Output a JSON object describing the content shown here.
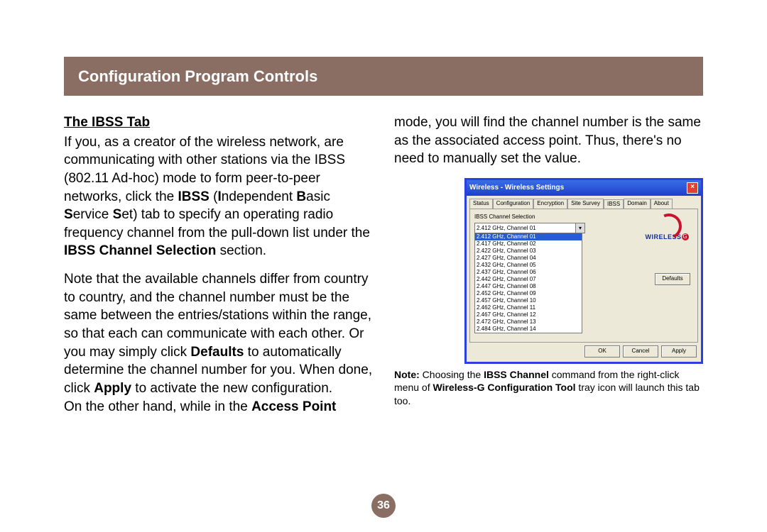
{
  "header": {
    "title": "Configuration Program Controls"
  },
  "page_number": "36",
  "left_column": {
    "subheading": "The IBSS Tab",
    "para1_pre": "If you, as a creator of the wireless network, are communicating with other stations via the IBSS (802.11 Ad-hoc) mode to form peer-to-peer networks, click the ",
    "para1_bold1": "IBSS",
    "para1_mid1": " (",
    "para1_bold2": "I",
    "para1_mid2": "ndependent ",
    "para1_bold3": "B",
    "para1_mid3": "asic ",
    "para1_bold4": "S",
    "para1_mid4": "ervice ",
    "para1_bold5": "S",
    "para1_mid5": "et) tab to specify an operating radio frequency channel from the pull-down list under the ",
    "para1_bold6": "IBSS Channel Selection",
    "para1_post": " section.",
    "para2_pre": "Note that the available channels differ from country to country, and the channel number must be the same between the entries/stations within the range, so that each can communicate with each other. Or you may simply click ",
    "para2_bold1": "Defaults",
    "para2_mid1": " to automatically determine the channel number for you. When done, click ",
    "para2_bold2": "Apply",
    "para2_mid2": " to activate the new configuration.",
    "para3_pre": "On the other hand, while in the ",
    "para3_bold": "Access Point"
  },
  "right_column": {
    "para_cont": "mode, you will find the channel number is the same as the associated access point. Thus, there's no need to manually set the value.",
    "note_bold1": "Note:",
    "note_mid1": " Choosing the ",
    "note_bold2": "IBSS Channel",
    "note_mid2": " command from the right-click menu of ",
    "note_bold3": "Wireless-G Configuration Tool",
    "note_post": " tray icon will launch this tab too."
  },
  "dialog": {
    "title": "Wireless - Wireless Settings",
    "tabs": [
      "Status",
      "Configuration",
      "Encryption",
      "Site Survey",
      "IBSS",
      "Domain",
      "About"
    ],
    "fieldset_label": "IBSS Channel Selection",
    "selected": "2.412 GHz, Channel 01",
    "channels": [
      "2.412 GHz, Channel 01",
      "2.417 GHz, Channel 02",
      "2.422 GHz, Channel 03",
      "2.427 GHz, Channel 04",
      "2.432 GHz, Channel 05",
      "2.437 GHz, Channel 06",
      "2.442 GHz, Channel 07",
      "2.447 GHz, Channel 08",
      "2.452 GHz, Channel 09",
      "2.457 GHz, Channel 10",
      "2.462 GHz, Channel 11",
      "2.467 GHz, Channel 12",
      "2.472 GHz, Channel 13",
      "2.484 GHz, Channel 14"
    ],
    "logo_text": "WIRELESS",
    "logo_g": "G",
    "defaults_btn": "Defaults",
    "ok_btn": "OK",
    "cancel_btn": "Cancel",
    "apply_btn": "Apply"
  }
}
